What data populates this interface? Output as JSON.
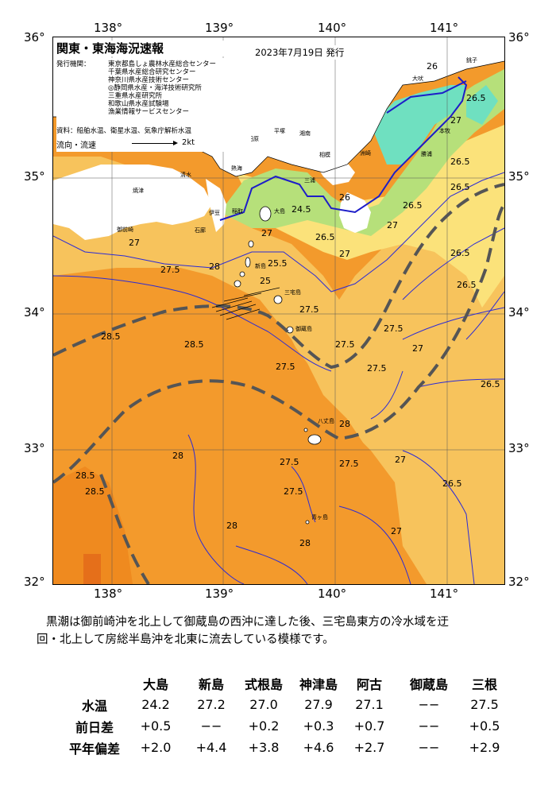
{
  "title": "関東・東海海況速報",
  "issue_date": "2023年7月19日 発行",
  "organizations": {
    "label": "発行機関：",
    "items": [
      "東京都島しょ農林水産総合センター",
      "千葉県水産総合研究センター",
      "神奈川県水産技術センター",
      "◎静岡県水産・海洋技術研究所",
      "三重県水産研究所",
      "和歌山県水産試験場",
      "漁業情報サービスセンター"
    ]
  },
  "source": "資料：船舶水温、衛星水温、気象庁解析水温",
  "flow_legend": {
    "label": "流向・流速",
    "value": "2kt"
  },
  "axes": {
    "longitudes": [
      "138°",
      "139°",
      "140°",
      "141°"
    ],
    "latitudes": [
      "36°",
      "35°",
      "34°",
      "33°",
      "32°"
    ]
  },
  "places": [
    "大吠",
    "平塚",
    "小田原",
    "湘南",
    "相模",
    "三浦",
    "本牧",
    "洲崎",
    "勝浦",
    "大島",
    "新島",
    "三宅島",
    "御蔵島",
    "八丈島",
    "青ヶ島",
    "伊豆",
    "石廊",
    "御前崎",
    "焼津",
    "清水",
    "熱海",
    "稲取",
    "銚子"
  ],
  "contour_labels": [
    "26",
    "26.5",
    "27",
    "27.5",
    "28",
    "28.5",
    "25",
    "25.5",
    "24.5",
    "27.5",
    "28.5",
    "27",
    "26.5",
    "28",
    "27.5",
    "28",
    "28.5",
    "27",
    "27.5",
    "28",
    "27",
    "26.5",
    "26",
    "27.5",
    "26.5",
    "28",
    "25",
    "26",
    "26.5",
    "27",
    "27"
  ],
  "colors": {
    "ocean_28": "#f39a2c",
    "ocean_28_5": "#ef8a1f",
    "ocean_27": "#f7c35c",
    "ocean_26": "#fbe27a",
    "ocean_25": "#b6e07a",
    "ocean_24": "#6fe0c0",
    "land": "#ffffff",
    "kuroshio": "#555555",
    "contour": "#2b2bd6"
  },
  "summary": {
    "line1": "黒潮は御前崎沖を北上して御蔵島の西沖に達した後、三宅島東方の冷水域を迂",
    "line2": "回・北上して房総半島沖を北東に流去している模様です。"
  },
  "table": {
    "columns": [
      "大島",
      "新島",
      "式根島",
      "神津島",
      "阿古",
      "御蔵島",
      "三根"
    ],
    "rows": [
      {
        "label": "水温",
        "values": [
          "24.2",
          "27.2",
          "27.0",
          "27.9",
          "27.1",
          "−−",
          "27.5"
        ]
      },
      {
        "label": "前日差",
        "values": [
          "+0.5",
          "−−",
          "+0.2",
          "+0.3",
          "+0.7",
          "−−",
          "+0.5"
        ]
      },
      {
        "label": "平年偏差",
        "values": [
          "+2.0",
          "+4.4",
          "+3.8",
          "+4.6",
          "+2.7",
          "−−",
          "+2.9"
        ]
      }
    ]
  }
}
